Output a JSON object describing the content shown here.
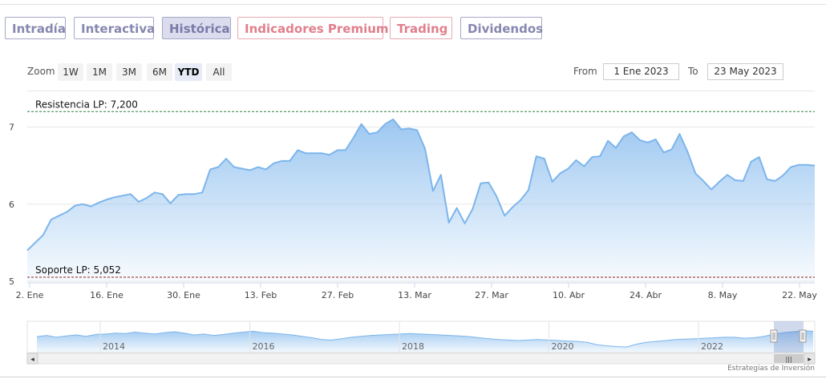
{
  "tabs": [
    {
      "label": "Intradía",
      "style": "purple"
    },
    {
      "label": "Interactiva",
      "style": "purple"
    },
    {
      "label": "Histórica",
      "style": "active"
    },
    {
      "label": "Indicadores Premium",
      "style": "pink"
    },
    {
      "label": "Trading",
      "style": "pink"
    },
    {
      "label": "Dividendos",
      "style": "purple"
    }
  ],
  "zoom": {
    "label": "Zoom",
    "buttons": [
      "1W",
      "1M",
      "3M",
      "6M",
      "YTD",
      "All"
    ],
    "selected": "YTD"
  },
  "range": {
    "from_label": "From",
    "from_value": "1 Ene 2023",
    "to_label": "To",
    "to_value": "23 May 2023"
  },
  "colors": {
    "series": "#7cb5ec",
    "resistance": "#2e7d32",
    "support": "#8b1c1c",
    "tab_purple": "#8787b0",
    "tab_pink": "#e07f8c"
  },
  "chart_data": {
    "type": "area",
    "title": "",
    "xlabel": "",
    "ylabel": "",
    "x_ticks": [
      "2. Ene",
      "16. Ene",
      "30. Ene",
      "13. Feb",
      "27. Feb",
      "13. Mar",
      "27. Mar",
      "10. Abr",
      "24. Abr",
      "8. May",
      "22. May"
    ],
    "y_ticks": [
      "5",
      "6",
      "7"
    ],
    "ylim": [
      5.0,
      7.4
    ],
    "grid": true,
    "lines": [
      {
        "label": "Resistencia LP: 7,200",
        "value": 7.2
      },
      {
        "label": "Soporte LP: 5,052",
        "value": 5.052
      }
    ],
    "series": [
      {
        "values": [
          5.4,
          5.5,
          5.6,
          5.8,
          5.85,
          5.9,
          5.98,
          6.0,
          5.97,
          6.02,
          6.06,
          6.09,
          6.11,
          6.13,
          6.03,
          6.08,
          6.15,
          6.13,
          6.01,
          6.12,
          6.13,
          6.13,
          6.15,
          6.45,
          6.48,
          6.59,
          6.48,
          6.46,
          6.44,
          6.48,
          6.45,
          6.53,
          6.56,
          6.56,
          6.7,
          6.66,
          6.66,
          6.66,
          6.64,
          6.7,
          6.7,
          6.86,
          7.04,
          6.91,
          6.93,
          7.04,
          7.1,
          6.97,
          6.98,
          6.96,
          6.72,
          6.17,
          6.38,
          5.76,
          5.95,
          5.75,
          5.94,
          6.27,
          6.28,
          6.1,
          5.85,
          5.96,
          6.05,
          6.18,
          6.62,
          6.59,
          6.29,
          6.4,
          6.46,
          6.57,
          6.49,
          6.61,
          6.62,
          6.82,
          6.73,
          6.88,
          6.93,
          6.83,
          6.8,
          6.84,
          6.67,
          6.71,
          6.91,
          6.68,
          6.4,
          6.3,
          6.19,
          6.29,
          6.38,
          6.31,
          6.3,
          6.55,
          6.61,
          6.32,
          6.3,
          6.37,
          6.48,
          6.51,
          6.51,
          6.5
        ]
      }
    ]
  },
  "navigator": {
    "years": [
      "2014",
      "2016",
      "2018",
      "2020",
      "2022"
    ],
    "scroll_grip": "|||",
    "left_arrow": "◂",
    "right_arrow": "▸",
    "overview": [
      0.55,
      0.6,
      0.52,
      0.58,
      0.62,
      0.56,
      0.64,
      0.66,
      0.7,
      0.68,
      0.74,
      0.7,
      0.66,
      0.72,
      0.76,
      0.7,
      0.62,
      0.66,
      0.6,
      0.64,
      0.7,
      0.74,
      0.78,
      0.72,
      0.7,
      0.66,
      0.62,
      0.56,
      0.5,
      0.42,
      0.4,
      0.46,
      0.52,
      0.56,
      0.6,
      0.62,
      0.64,
      0.66,
      0.68,
      0.66,
      0.64,
      0.62,
      0.6,
      0.58,
      0.55,
      0.5,
      0.46,
      0.42,
      0.4,
      0.38,
      0.4,
      0.42,
      0.4,
      0.38,
      0.36,
      0.34,
      0.3,
      0.2,
      0.15,
      0.12,
      0.1,
      0.22,
      0.3,
      0.34,
      0.38,
      0.42,
      0.44,
      0.46,
      0.48,
      0.5,
      0.52,
      0.52,
      0.48,
      0.5,
      0.56,
      0.66,
      0.72,
      0.76,
      0.8,
      0.78
    ]
  },
  "credits": "Estrategias de Inversión"
}
